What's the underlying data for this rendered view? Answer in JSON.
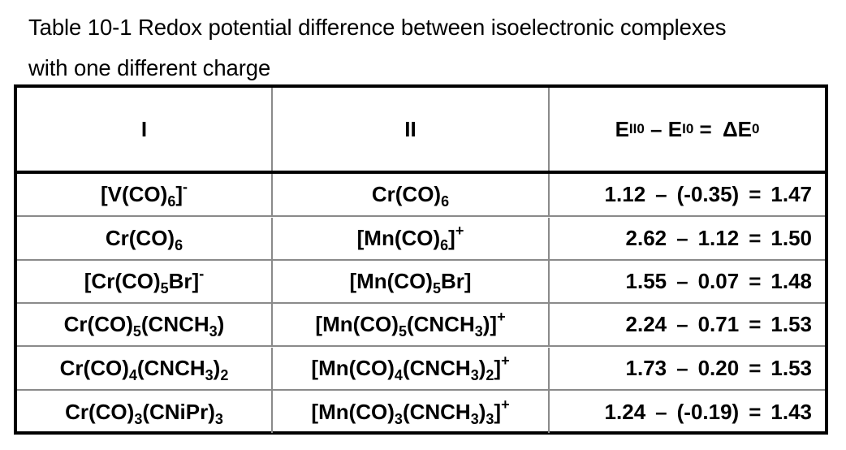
{
  "caption": {
    "line1": "Table 10-1 Redox potential difference between isoelectronic complexes",
    "line2": "with one different charge"
  },
  "table": {
    "headers": {
      "col1": "I",
      "col2": "II",
      "col3": {
        "e": "E",
        "sub_ii": "II",
        "sup_0a": "0",
        "minus": " – ",
        "sub_i": "I",
        "sup_0b": "0",
        "equals": " = ",
        "delta_e": "ΔE",
        "sup_0c": "0"
      }
    },
    "rows": [
      {
        "col1": [
          {
            "t": "[V(CO)"
          },
          {
            "sub": "6"
          },
          {
            "t": "]"
          },
          {
            "sup": "-"
          }
        ],
        "col2": [
          {
            "t": "Cr(CO)"
          },
          {
            "sub": "6"
          }
        ],
        "e2": "1.12",
        "e1": "(-0.35)",
        "delta": "1.47"
      },
      {
        "col1": [
          {
            "t": "Cr(CO)"
          },
          {
            "sub": "6"
          }
        ],
        "col2": [
          {
            "t": "[Mn(CO)"
          },
          {
            "sub": "6"
          },
          {
            "t": "]"
          },
          {
            "sup": "+"
          }
        ],
        "e2": "2.62",
        "e1": "1.12",
        "delta": "1.50"
      },
      {
        "col1": [
          {
            "t": "[Cr(CO)"
          },
          {
            "sub": "5"
          },
          {
            "t": "Br]"
          },
          {
            "sup": "-"
          }
        ],
        "col2": [
          {
            "t": "[Mn(CO)"
          },
          {
            "sub": "5"
          },
          {
            "t": "Br]"
          }
        ],
        "e2": "1.55",
        "e1": "0.07",
        "delta": "1.48"
      },
      {
        "col1": [
          {
            "t": "Cr(CO)"
          },
          {
            "sub": "5"
          },
          {
            "t": "(CNCH"
          },
          {
            "sub": "3"
          },
          {
            "t": ")"
          }
        ],
        "col2": [
          {
            "t": "[Mn(CO)"
          },
          {
            "sub": "5"
          },
          {
            "t": "(CNCH"
          },
          {
            "sub": "3"
          },
          {
            "t": ")]"
          },
          {
            "sup": "+"
          }
        ],
        "e2": "2.24",
        "e1": "0.71",
        "delta": "1.53"
      },
      {
        "col1": [
          {
            "t": "Cr(CO)"
          },
          {
            "sub": "4"
          },
          {
            "t": "(CNCH"
          },
          {
            "sub": "3"
          },
          {
            "t": ")"
          },
          {
            "sub": "2"
          }
        ],
        "col2": [
          {
            "t": "[Mn(CO)"
          },
          {
            "sub": "4"
          },
          {
            "t": "(CNCH"
          },
          {
            "sub": "3"
          },
          {
            "t": ")"
          },
          {
            "sub": "2"
          },
          {
            "t": "]"
          },
          {
            "sup": "+"
          }
        ],
        "e2": "1.73",
        "e1": "0.20",
        "delta": "1.53"
      },
      {
        "col1": [
          {
            "t": "Cr(CO)"
          },
          {
            "sub": "3"
          },
          {
            "t": "(CNiPr)"
          },
          {
            "sub": "3"
          }
        ],
        "col2": [
          {
            "t": "[Mn(CO)"
          },
          {
            "sub": "3"
          },
          {
            "t": "(CNCH"
          },
          {
            "sub": "3"
          },
          {
            "t": ")"
          },
          {
            "sub": "3"
          },
          {
            "t": "]"
          },
          {
            "sup": "+"
          }
        ],
        "e2": "1.24",
        "e1": "(-0.19)",
        "delta": "1.43"
      }
    ],
    "operators": {
      "minus": "–",
      "equals": "="
    }
  }
}
